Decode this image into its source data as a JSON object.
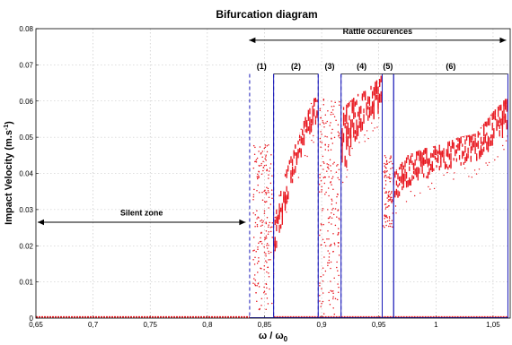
{
  "chart_data": {
    "type": "scatter",
    "title": "Bifurcation diagram",
    "xlabel": "ω / ω",
    "xlabel_sub": "0",
    "ylabel": "Impact Velocity (m.s",
    "ylabel_sup": "-1",
    "ylabel_end": ")",
    "xlim": [
      0.65,
      1.065
    ],
    "ylim": [
      0,
      0.08
    ],
    "xticks": [
      0.65,
      0.7,
      0.75,
      0.8,
      0.85,
      0.9,
      0.95,
      1,
      1.05
    ],
    "xtick_labels": [
      "0,65",
      "0,7",
      "0,75",
      "0,8",
      "0,85",
      "0,9",
      "0,95",
      "1",
      "1,05"
    ],
    "yticks": [
      0,
      0.01,
      0.02,
      0.03,
      0.04,
      0.05,
      0.06,
      0.07,
      0.08
    ],
    "ytick_labels": [
      "0",
      "0.01",
      "0.02",
      "0.03",
      "0.04",
      "0.05",
      "0.06",
      "0.07",
      "0.08"
    ],
    "grid": true,
    "marker_color": "#e8141c",
    "box_color": "#1a1ab8",
    "annotations": {
      "silent_zone": {
        "text": "Silent zone",
        "x_from": 0.65,
        "x_to": 0.835,
        "y": 0.0265,
        "text_y": 0.0283
      },
      "rattle": {
        "text": "Rattle occurences",
        "x_from": 0.835,
        "x_to": 1.063,
        "y": 0.0768,
        "text_y": 0.0785
      }
    },
    "regions": [
      {
        "label": "(1)",
        "x0": 0.837,
        "x1": 0.858,
        "dashed": true
      },
      {
        "label": "(2)",
        "x0": 0.858,
        "x1": 0.897,
        "dashed": false
      },
      {
        "label": "(3)",
        "x0": 0.897,
        "x1": 0.917,
        "dashed": true
      },
      {
        "label": "(4)",
        "x0": 0.917,
        "x1": 0.953,
        "dashed": false
      },
      {
        "label": "(5)",
        "x0": 0.953,
        "x1": 0.963,
        "dashed": false
      },
      {
        "label": "(6)",
        "x0": 0.963,
        "x1": 1.063,
        "dashed": false
      }
    ],
    "region_label_y": 0.0688,
    "region_box_top": 0.0675,
    "series": [
      {
        "kind": "silent",
        "x_range": [
          0.65,
          0.837
        ],
        "y": 0.0002
      },
      {
        "kind": "chaotic-scatter",
        "region": "(1)",
        "x_range": [
          0.84,
          0.857
        ],
        "y_range": [
          0.002,
          0.048
        ]
      },
      {
        "kind": "periodic-band",
        "region": "(2)",
        "x": [
          0.858,
          0.863,
          0.87,
          0.877,
          0.884,
          0.89,
          0.896
        ],
        "y_low": [
          0.016,
          0.022,
          0.032,
          0.04,
          0.046,
          0.05,
          0.054
        ],
        "y_high": [
          0.026,
          0.034,
          0.042,
          0.048,
          0.054,
          0.059,
          0.062
        ]
      },
      {
        "kind": "chaotic-scatter",
        "region": "(3)",
        "x_range": [
          0.898,
          0.916
        ],
        "y_range": [
          0.001,
          0.062
        ]
      },
      {
        "kind": "periodic-band",
        "region": "(4)",
        "x": [
          0.918,
          0.925,
          0.932,
          0.939,
          0.946,
          0.952
        ],
        "y_low": [
          0.036,
          0.046,
          0.05,
          0.053,
          0.055,
          0.057
        ],
        "y_high": [
          0.058,
          0.06,
          0.062,
          0.063,
          0.065,
          0.067
        ]
      },
      {
        "kind": "chaotic-scatter",
        "region": "(5)",
        "x_range": [
          0.954,
          0.962
        ],
        "y_range": [
          0.025,
          0.045
        ]
      },
      {
        "kind": "periodic-band",
        "region": "(6)",
        "x": [
          0.963,
          0.975,
          0.99,
          1.005,
          1.02,
          1.035,
          1.05,
          1.062
        ],
        "y_low": [
          0.032,
          0.036,
          0.038,
          0.04,
          0.042,
          0.043,
          0.047,
          0.051
        ],
        "y_high": [
          0.04,
          0.045,
          0.047,
          0.048,
          0.05,
          0.051,
          0.057,
          0.061
        ]
      },
      {
        "kind": "zero-line",
        "x_range": [
          0.858,
          1.063
        ],
        "y": 0.0002
      }
    ]
  }
}
